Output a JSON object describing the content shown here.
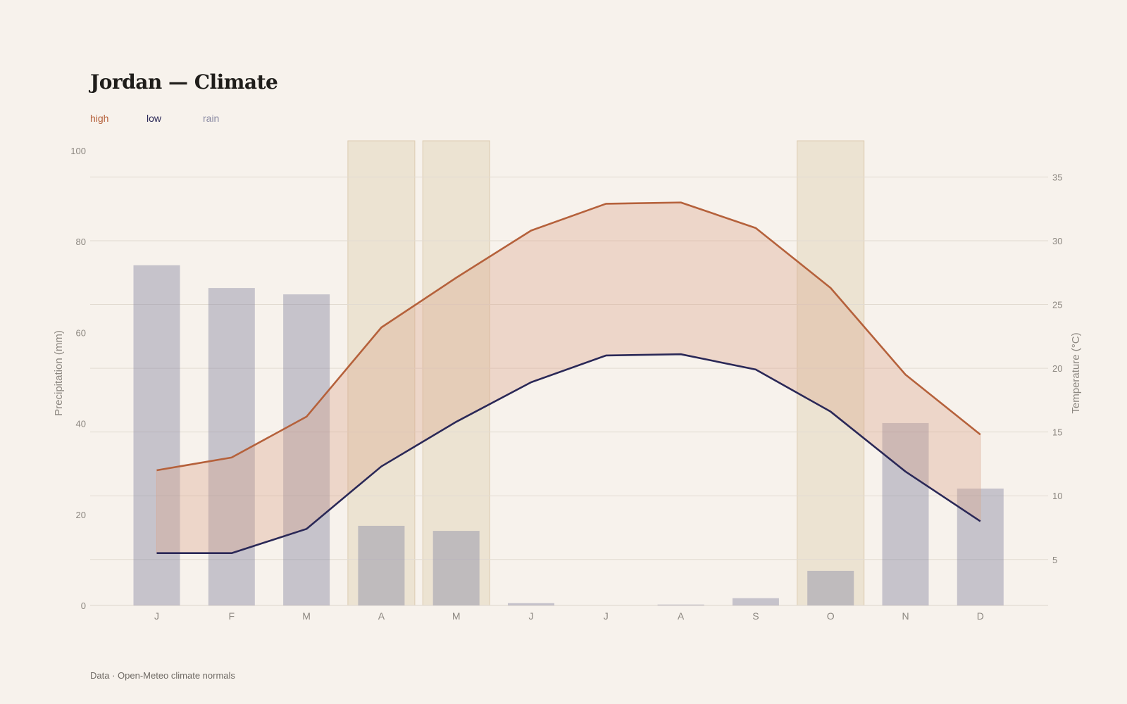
{
  "page": {
    "title": "Jordan — Climate",
    "footer": "Data · Open-Meteo climate normals"
  },
  "legend": [
    {
      "label": "high",
      "color": "#b5613b"
    },
    {
      "label": "low",
      "color": "#2a2857"
    },
    {
      "label": "rain",
      "color": "#8a8aa3"
    }
  ],
  "chart_data": {
    "type": "bar+line",
    "categories": [
      "J",
      "F",
      "M",
      "A",
      "M",
      "J",
      "J",
      "A",
      "S",
      "O",
      "N",
      "D"
    ],
    "series": [
      {
        "name": "rain",
        "type": "bar",
        "axis": "left",
        "values": [
          74.8,
          69.8,
          68.4,
          17.5,
          16.4,
          0.5,
          0,
          0.2,
          1.6,
          7.6,
          40.1,
          25.7
        ]
      },
      {
        "name": "high",
        "type": "line",
        "axis": "right",
        "values": [
          12.0,
          13.0,
          16.2,
          23.2,
          27.1,
          30.8,
          32.9,
          33.0,
          31.0,
          26.3,
          19.5,
          14.8
        ]
      },
      {
        "name": "low",
        "type": "line",
        "axis": "right",
        "values": [
          5.5,
          5.5,
          7.4,
          12.3,
          15.8,
          18.9,
          21.0,
          21.1,
          19.9,
          16.6,
          11.9,
          8.0
        ]
      }
    ],
    "highlight_months": [
      3,
      4,
      9
    ],
    "left_axis": {
      "label": "Precipitation (mm)",
      "ticks": [
        0,
        20,
        40,
        60,
        80,
        100
      ],
      "range": [
        0,
        100
      ]
    },
    "right_axis": {
      "label": "Temperature (°C)",
      "ticks": [
        5,
        10,
        15,
        20,
        25,
        30,
        35
      ],
      "range": [
        1.4,
        36.65
      ]
    },
    "colors": {
      "high": "#b5613b",
      "low": "#2a2857",
      "rain_bar": "#8a8aa3",
      "band_fill": "#d9a389",
      "highlight": "#e5d8c2",
      "grid": "#e2dbd1",
      "axis_text": "#8c8780"
    }
  }
}
